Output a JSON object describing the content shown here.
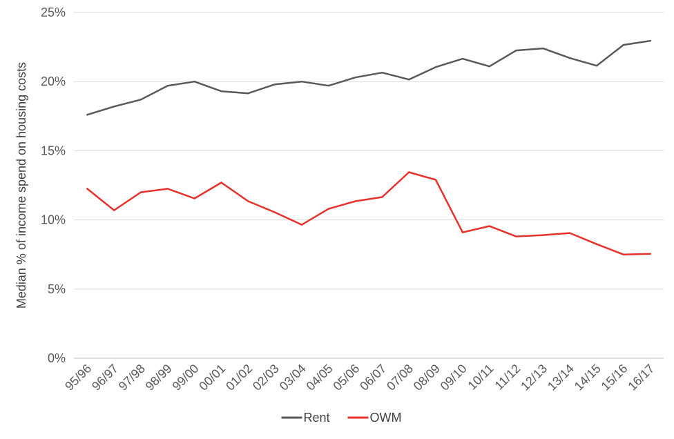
{
  "chart_data": {
    "type": "line",
    "ylabel": "Median % of income spend on housing costs",
    "ylim": [
      0,
      25
    ],
    "yticks": [
      "0%",
      "5%",
      "10%",
      "15%",
      "20%",
      "25%"
    ],
    "grid": true,
    "legend_position": "bottom",
    "categories": [
      "95/96",
      "96/97",
      "97/98",
      "98/99",
      "99/00",
      "00/01",
      "01/02",
      "02/03",
      "03/04",
      "04/05",
      "05/06",
      "06/07",
      "07/08",
      "08/09",
      "09/10",
      "10/11",
      "11/12",
      "12/13",
      "13/14",
      "14/15",
      "15/16",
      "16/17"
    ],
    "series": [
      {
        "name": "Rent",
        "color": "#595959",
        "values": [
          17.6,
          18.2,
          18.7,
          19.7,
          20.0,
          19.3,
          19.15,
          19.8,
          20.0,
          19.7,
          20.3,
          20.65,
          20.15,
          21.05,
          21.65,
          21.1,
          22.25,
          22.4,
          21.7,
          21.15,
          22.65,
          22.95
        ]
      },
      {
        "name": "OWM",
        "color": "#e8312a",
        "values": [
          12.25,
          10.7,
          12.0,
          12.25,
          11.55,
          12.7,
          11.35,
          10.55,
          9.65,
          10.8,
          11.35,
          11.65,
          13.45,
          12.9,
          9.1,
          9.55,
          8.8,
          8.9,
          9.05,
          8.25,
          7.5,
          7.55
        ]
      }
    ]
  }
}
